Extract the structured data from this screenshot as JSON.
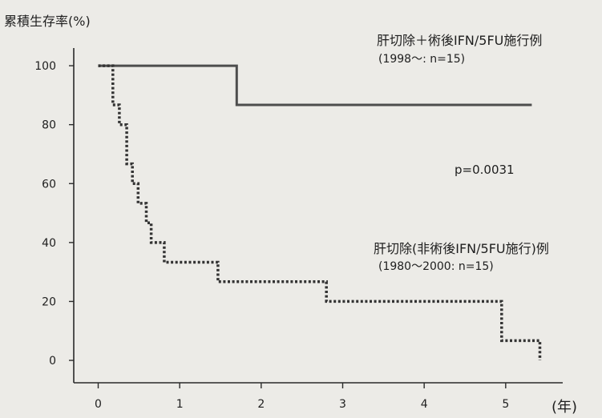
{
  "chart_data": {
    "type": "line",
    "drawstyle": "steps-post",
    "ylabel": "累積生存率(%)",
    "xlabel": "(年)",
    "xlim": [
      -0.3,
      5.7
    ],
    "ylim": [
      -7.6,
      106
    ],
    "xticks": [
      0,
      1,
      2,
      3,
      4,
      5
    ],
    "yticks": [
      0,
      20,
      40,
      60,
      80,
      100
    ],
    "grid": false,
    "series": [
      {
        "name": "肝切除＋術後IFN/5FU施行例",
        "note": "(1998〜: n=15)",
        "line_style": "solid",
        "color": "#4d4d4d",
        "points": [
          [
            0,
            100
          ],
          [
            1.7,
            86.7
          ],
          [
            5.32,
            86.7
          ]
        ]
      },
      {
        "name": "肝切除(非術後IFN/5FU施行)例",
        "note": "(1980〜2000: n=15)",
        "line_style": "dotted",
        "color": "#333333",
        "points": [
          [
            0,
            100
          ],
          [
            0.18,
            86.7
          ],
          [
            0.26,
            80
          ],
          [
            0.35,
            66.7
          ],
          [
            0.42,
            60
          ],
          [
            0.49,
            53.3
          ],
          [
            0.59,
            46.7
          ],
          [
            0.65,
            40
          ],
          [
            0.81,
            33.3
          ],
          [
            1.47,
            26.7
          ],
          [
            2.8,
            20
          ],
          [
            4.95,
            6.7
          ],
          [
            5.42,
            0
          ]
        ]
      }
    ],
    "annotations": [
      "p=0.0031"
    ]
  }
}
